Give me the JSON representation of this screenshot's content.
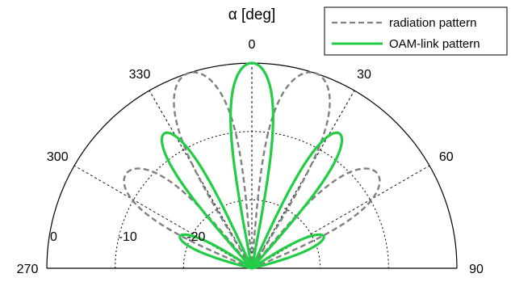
{
  "chart_data": {
    "type": "polar",
    "title": "",
    "angle_label": "α  [deg]",
    "angle_unit": "deg",
    "angle_ticks": [
      "0",
      "30",
      "60",
      "90",
      "270",
      "300",
      "330"
    ],
    "radial_ticks": [
      "0",
      "-10",
      "-20"
    ],
    "radial_range_db": [
      -30,
      0
    ],
    "angular_range_deg": [
      -90,
      90
    ],
    "grid": true,
    "legend_position": "top-right",
    "series": [
      {
        "name": "radiation pattern",
        "style": "dashed",
        "color": "#808080",
        "lobes": [
          {
            "center_deg": -18,
            "peak_db": 0,
            "halfwidth_deg": 14
          },
          {
            "center_deg": 18,
            "peak_db": 0,
            "halfwidth_deg": 14
          },
          {
            "center_deg": -53,
            "peak_db": -7,
            "halfwidth_deg": 15
          },
          {
            "center_deg": 53,
            "peak_db": -7,
            "halfwidth_deg": 15
          }
        ]
      },
      {
        "name": "OAM-link pattern",
        "style": "solid",
        "color": "#22cc44",
        "lobes": [
          {
            "center_deg": 0,
            "peak_db": 0,
            "halfwidth_deg": 11
          },
          {
            "center_deg": -33,
            "peak_db": -6.5,
            "halfwidth_deg": 9
          },
          {
            "center_deg": 33,
            "peak_db": -6.5,
            "halfwidth_deg": 9
          },
          {
            "center_deg": -66,
            "peak_db": -18.5,
            "halfwidth_deg": 12
          },
          {
            "center_deg": 66,
            "peak_db": -18.5,
            "halfwidth_deg": 12
          }
        ]
      }
    ]
  }
}
